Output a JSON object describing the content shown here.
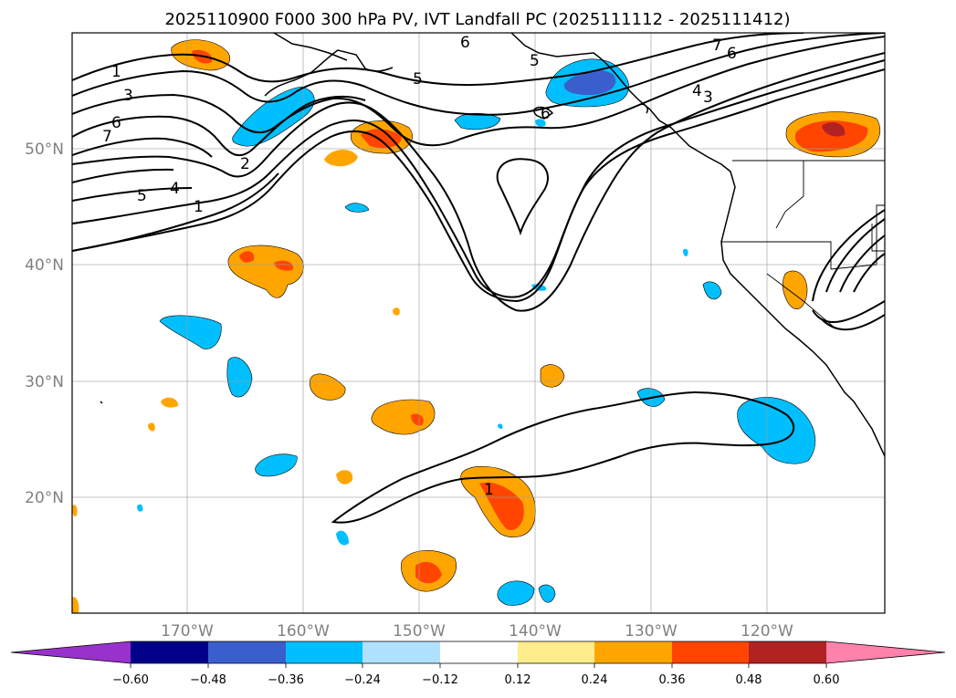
{
  "title": "2025110900 F000 300 hPa PV, IVT Landfall PC (2025111112 - 2025111412)",
  "lon_labels": [
    "170°W",
    "160°W",
    "150°W",
    "140°W",
    "130°W",
    "120°W"
  ],
  "lat_labels": [
    "50°N",
    "40°N",
    "30°N",
    "20°N"
  ],
  "colorbar": {
    "ticks": [
      "−0.60",
      "−0.48",
      "−0.36",
      "−0.24",
      "−0.12",
      "0.12",
      "0.24",
      "0.36",
      "0.48",
      "0.60"
    ],
    "colors": [
      "#9932cc",
      "#00008b",
      "#3a5fcd",
      "#00bfff",
      "#b0e2ff",
      "#ffffff",
      "#ffec8b",
      "#ffa500",
      "#ff4500",
      "#b22222",
      "#ff82ab"
    ]
  },
  "contour_labels": [
    "1",
    "3",
    "6",
    "7",
    "5",
    "4",
    "1",
    "2",
    "5",
    "6",
    "5",
    "6",
    "7",
    "6",
    "4",
    "3",
    "1"
  ]
}
